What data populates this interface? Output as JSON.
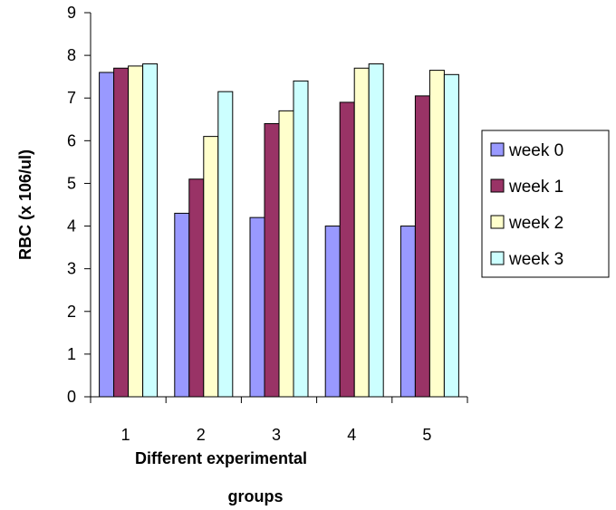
{
  "chart_data": {
    "type": "bar",
    "categories": [
      "1",
      "2",
      "3",
      "4",
      "5"
    ],
    "series": [
      {
        "name": "week 0",
        "values": [
          7.6,
          4.3,
          4.2,
          4.0,
          4.0
        ],
        "color": "#9999ff"
      },
      {
        "name": "week 1",
        "values": [
          7.7,
          5.1,
          6.4,
          6.9,
          7.05
        ],
        "color": "#993366"
      },
      {
        "name": "week 2",
        "values": [
          7.75,
          6.1,
          6.7,
          7.7,
          7.65
        ],
        "color": "#ffffcc"
      },
      {
        "name": "week 3",
        "values": [
          7.8,
          7.15,
          7.4,
          7.8,
          7.55
        ],
        "color": "#ccffff"
      }
    ],
    "ylabel": "RBC (x 106/ul)",
    "xlabel_line1": "Different experimental",
    "xlabel_line2": "groups",
    "ylim": [
      0,
      9
    ],
    "yticks": [
      "0",
      "1",
      "2",
      "3",
      "4",
      "5",
      "6",
      "7",
      "8",
      "9"
    ],
    "grid": false,
    "legend": "right"
  }
}
